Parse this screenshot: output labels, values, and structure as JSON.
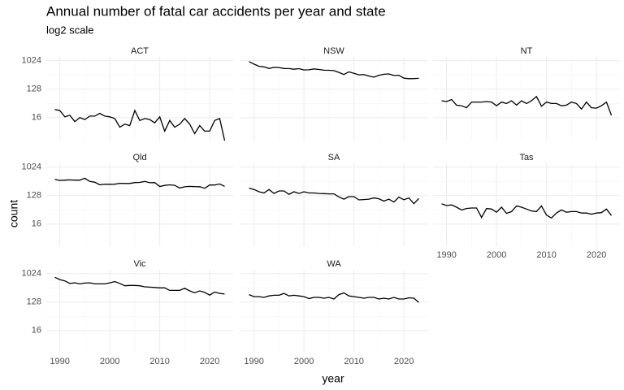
{
  "chart_data": {
    "type": "line",
    "title": "Annual number of fatal car accidents per year and state",
    "subtitle": "log2 scale",
    "xlabel": "year",
    "ylabel": "count",
    "log_base": 2,
    "grid": true,
    "xlim": [
      1987.3,
      2024.7
    ],
    "ylim": [
      3.2,
      1350
    ],
    "xticks": [
      1990,
      2000,
      2010,
      2020
    ],
    "yticks": [
      16,
      128,
      1024
    ],
    "x": [
      1989,
      1990,
      1991,
      1992,
      1993,
      1994,
      1995,
      1996,
      1997,
      1998,
      1999,
      2000,
      2001,
      2002,
      2003,
      2004,
      2005,
      2006,
      2007,
      2008,
      2009,
      2010,
      2011,
      2012,
      2013,
      2014,
      2015,
      2016,
      2017,
      2018,
      2019,
      2020,
      2021,
      2022,
      2023
    ],
    "series": [
      {
        "name": "ACT",
        "color": "#000000",
        "values": [
          29,
          27,
          17,
          19,
          12,
          16,
          14,
          18,
          18,
          22,
          18,
          17,
          15,
          8,
          10,
          9,
          27,
          13,
          15,
          14,
          11,
          17,
          6,
          13,
          8,
          10,
          15,
          10,
          5,
          9,
          6,
          6,
          13,
          15,
          3
        ]
      },
      {
        "name": "NSW",
        "color": "#000000",
        "values": [
          960,
          797,
          680,
          650,
          580,
          630,
          620,
          580,
          575,
          550,
          570,
          520,
          525,
          561,
          538,
          510,
          508,
          496,
          435,
          374,
          453,
          405,
          364,
          370,
          333,
          307,
          350,
          380,
          389,
          347,
          354,
          285,
          275,
          278,
          282
        ]
      },
      {
        "name": "NT",
        "color": "#000000",
        "values": [
          55,
          52,
          60,
          40,
          38,
          33,
          50,
          50,
          50,
          52,
          50,
          38,
          50,
          45,
          55,
          40,
          55,
          45,
          55,
          75,
          37,
          50,
          45,
          45,
          38,
          40,
          50,
          45,
          30,
          50,
          33,
          32,
          38,
          50,
          19
        ]
      },
      {
        "name": "Qld",
        "color": "#000000",
        "values": [
          420,
          386,
          397,
          402,
          396,
          396,
          453,
          360,
          340,
          283,
          293,
          292,
          295,
          314,
          310,
          310,
          332,
          336,
          360,
          328,
          331,
          249,
          269,
          280,
          271,
          223,
          243,
          251,
          247,
          245,
          219,
          277,
          277,
          299,
          251
        ]
      },
      {
        "name": "SA",
        "color": "#000000",
        "values": [
          220,
          200,
          170,
          155,
          200,
          150,
          180,
          180,
          140,
          170,
          150,
          170,
          155,
          155,
          150,
          148,
          145,
          145,
          117,
          99,
          119,
          119,
          94,
          96,
          99,
          108,
          102,
          86,
          99,
          80,
          114,
          95,
          108,
          71,
          104
        ]
      },
      {
        "name": "Tas",
        "color": "#000000",
        "values": [
          70,
          62,
          65,
          55,
          45,
          50,
          52,
          52,
          26,
          50,
          48,
          38,
          55,
          35,
          40,
          60,
          55,
          48,
          42,
          40,
          60,
          31,
          25,
          36,
          45,
          38,
          40,
          40,
          36,
          36,
          33,
          36,
          37,
          48,
          30
        ]
      },
      {
        "name": "Vic",
        "color": "#000000",
        "values": [
          776,
          660,
          600,
          500,
          520,
          480,
          510,
          520,
          480,
          480,
          480,
          520,
          570,
          500,
          420,
          430,
          430,
          420,
          390,
          380,
          370,
          360,
          360,
          300,
          300,
          300,
          350,
          290,
          252,
          290,
          259,
          213,
          266,
          240,
          230
        ]
      },
      {
        "name": "WA",
        "color": "#000000",
        "values": [
          220,
          190,
          190,
          180,
          200,
          210,
          210,
          240,
          200,
          210,
          200,
          190,
          165,
          180,
          180,
          170,
          180,
          160,
          220,
          250,
          200,
          190,
          180,
          170,
          180,
          180,
          160,
          170,
          160,
          180,
          160,
          160,
          175,
          170,
          125
        ]
      }
    ]
  }
}
